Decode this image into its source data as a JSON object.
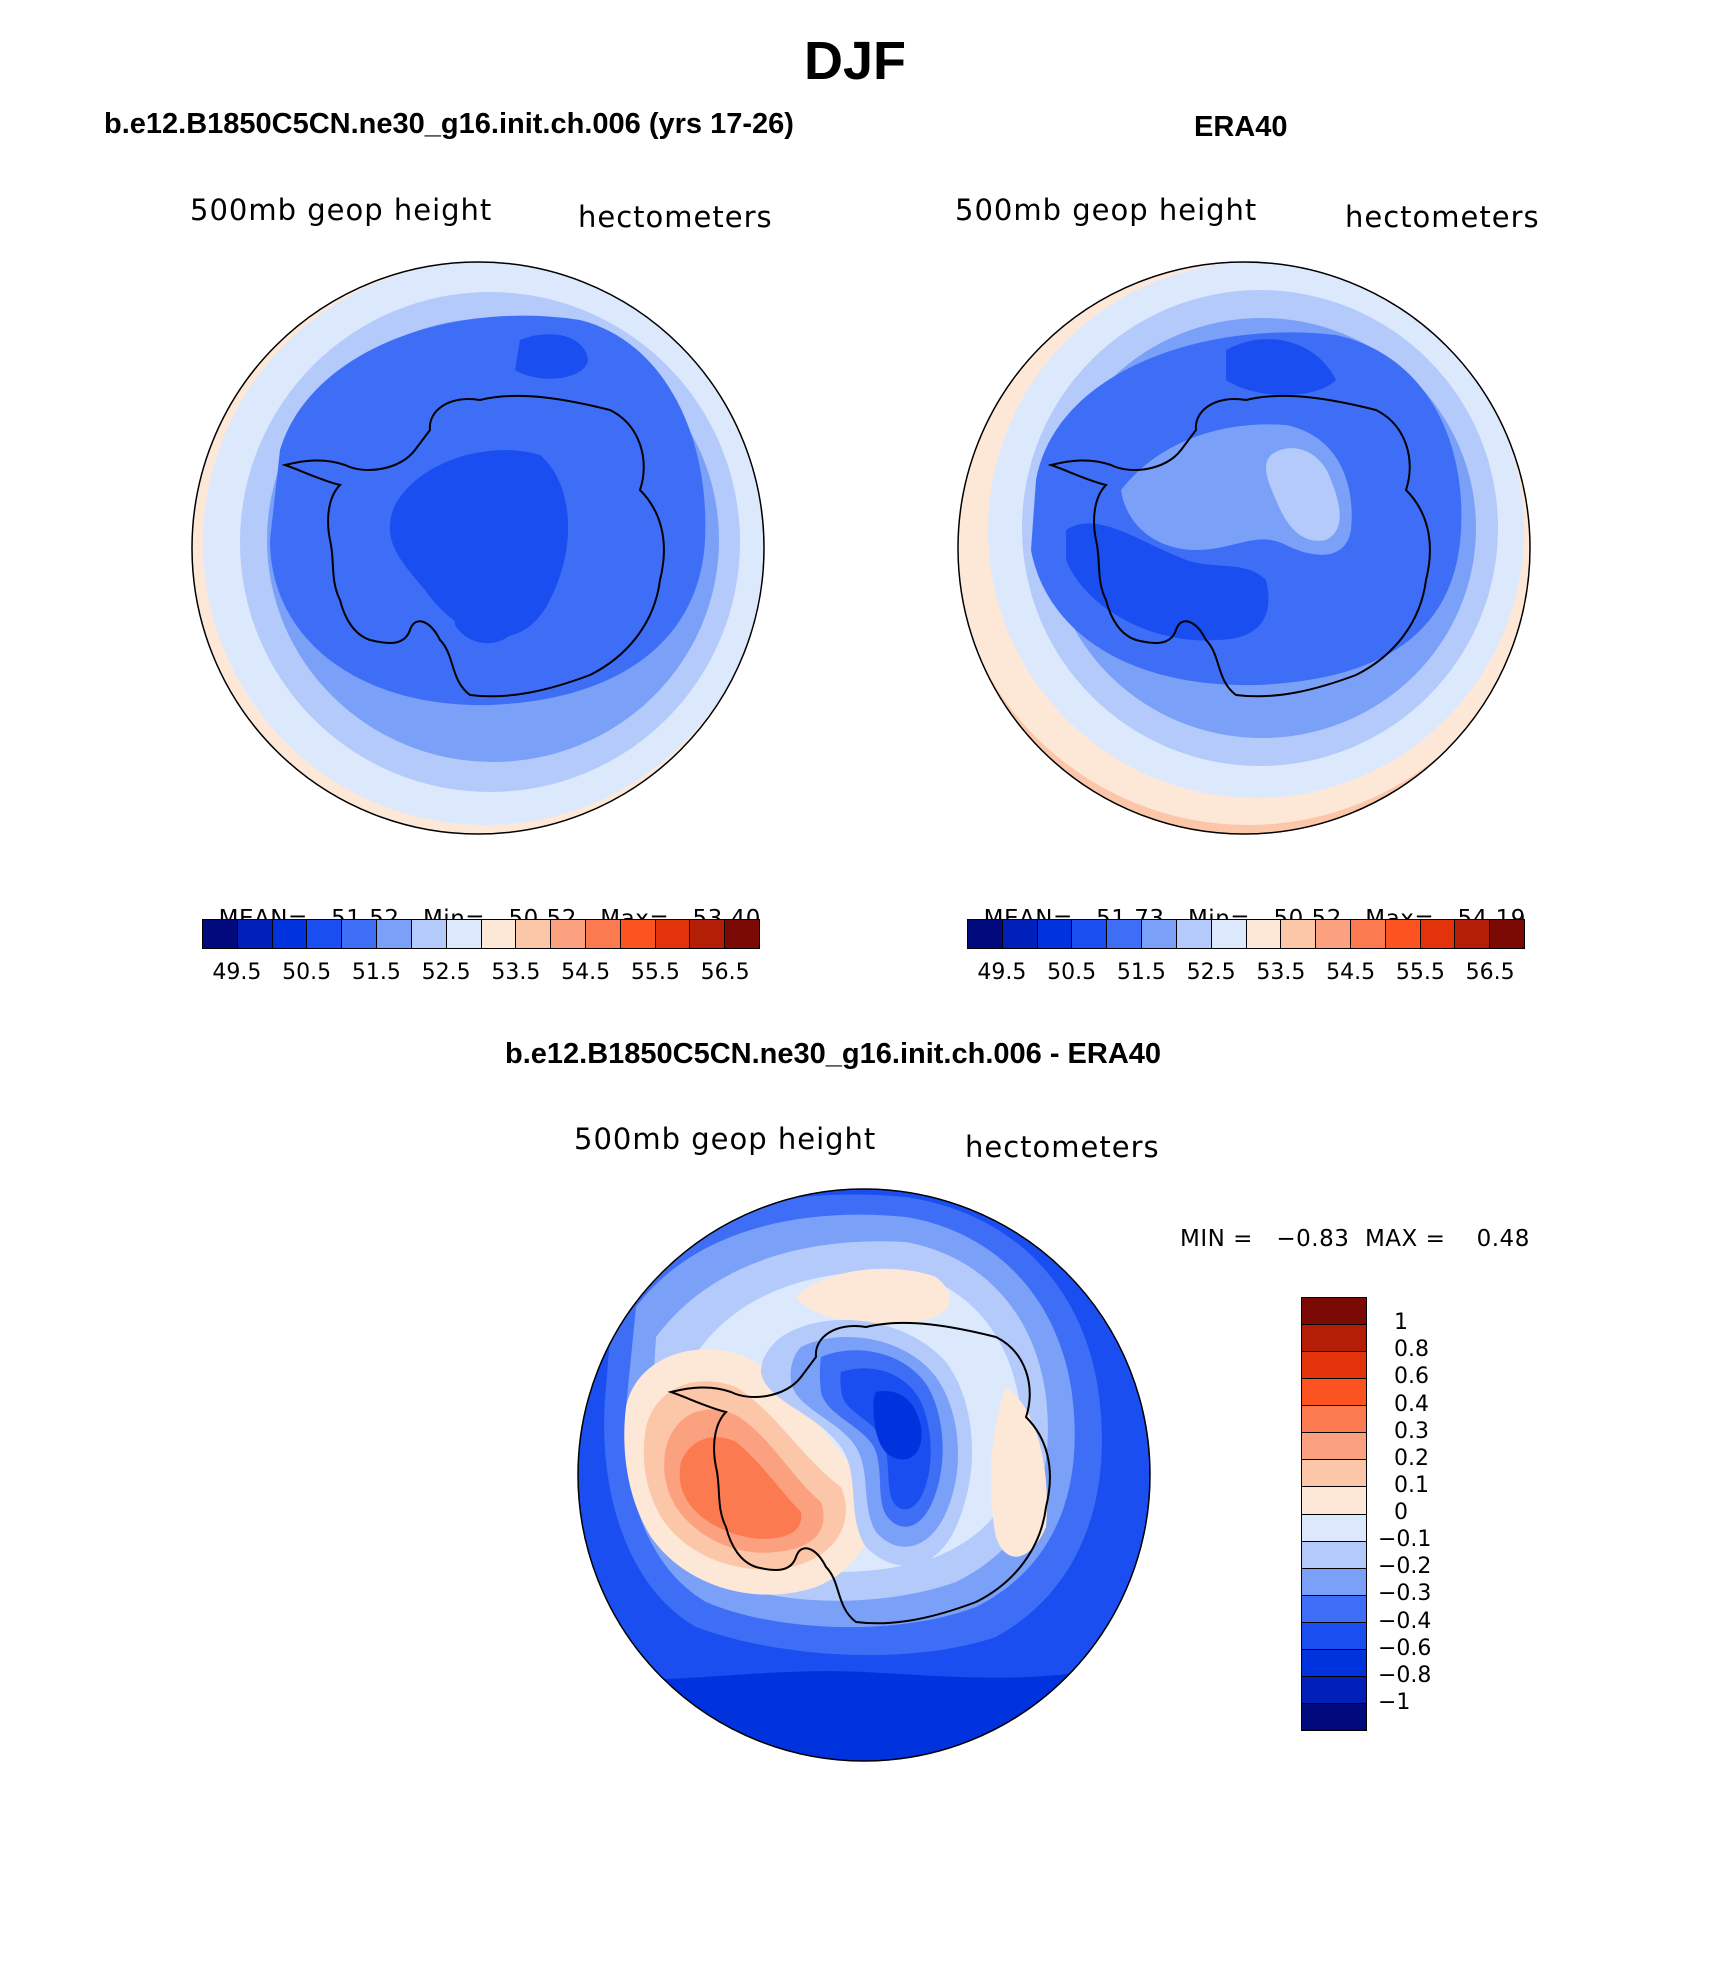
{
  "title": "DJF",
  "colors": {
    "abs_levels": [
      "#000a7d",
      "#0020b9",
      "#0033de",
      "#1a4ef0",
      "#3e6ef5",
      "#7aa0f8",
      "#b3cafb",
      "#dce9fd",
      "#fde8d8",
      "#fcc6a9",
      "#fca180",
      "#fc7a4f",
      "#fc5420",
      "#e3330a",
      "#b51e06",
      "#7a0a03"
    ],
    "diff_levels": [
      "#7a0a03",
      "#b51e06",
      "#e3330a",
      "#fc5420",
      "#fc7a4f",
      "#fca180",
      "#fcc6a9",
      "#fde8d8",
      "#dce9fd",
      "#b3cafb",
      "#7aa0f8",
      "#3e6ef5",
      "#1a4ef0",
      "#0033de",
      "#0020b9",
      "#000a7d"
    ]
  },
  "panels": [
    {
      "id": "model",
      "title": "b.e12.B1850C5CN.ne30_g16.init.ch.006 (yrs 17-26)",
      "variable": "500mb geop height",
      "units": "hectometers",
      "stats": {
        "mean_label": "MEAN=",
        "mean": "51.52",
        "min_label": "Min=",
        "min": "50.52",
        "max_label": "Max=",
        "max": "53.40"
      },
      "colorbar_labels": [
        "49.5",
        "50.5",
        "51.5",
        "52.5",
        "53.5",
        "54.5",
        "55.5",
        "56.5"
      ]
    },
    {
      "id": "obs",
      "title": "ERA40",
      "variable": "500mb geop height",
      "units": "hectometers",
      "stats": {
        "mean_label": "MEAN=",
        "mean": "51.73",
        "min_label": "Min=",
        "min": "50.52",
        "max_label": "Max=",
        "max": "54.19"
      },
      "colorbar_labels": [
        "49.5",
        "50.5",
        "51.5",
        "52.5",
        "53.5",
        "54.5",
        "55.5",
        "56.5"
      ]
    }
  ],
  "diff": {
    "title": "b.e12.B1850C5CN.ne30_g16.init.ch.006 - ERA40",
    "variable": "500mb geop height",
    "units": "hectometers",
    "minmax": "MIN =   −0.83  MAX =    0.48",
    "colorbar_labels": [
      "1",
      "0.8",
      "0.6",
      "0.4",
      "0.3",
      "0.2",
      "0.1",
      "0",
      "−0.1",
      "−0.2",
      "−0.3",
      "−0.4",
      "−0.6",
      "−0.8",
      "−1"
    ]
  }
}
